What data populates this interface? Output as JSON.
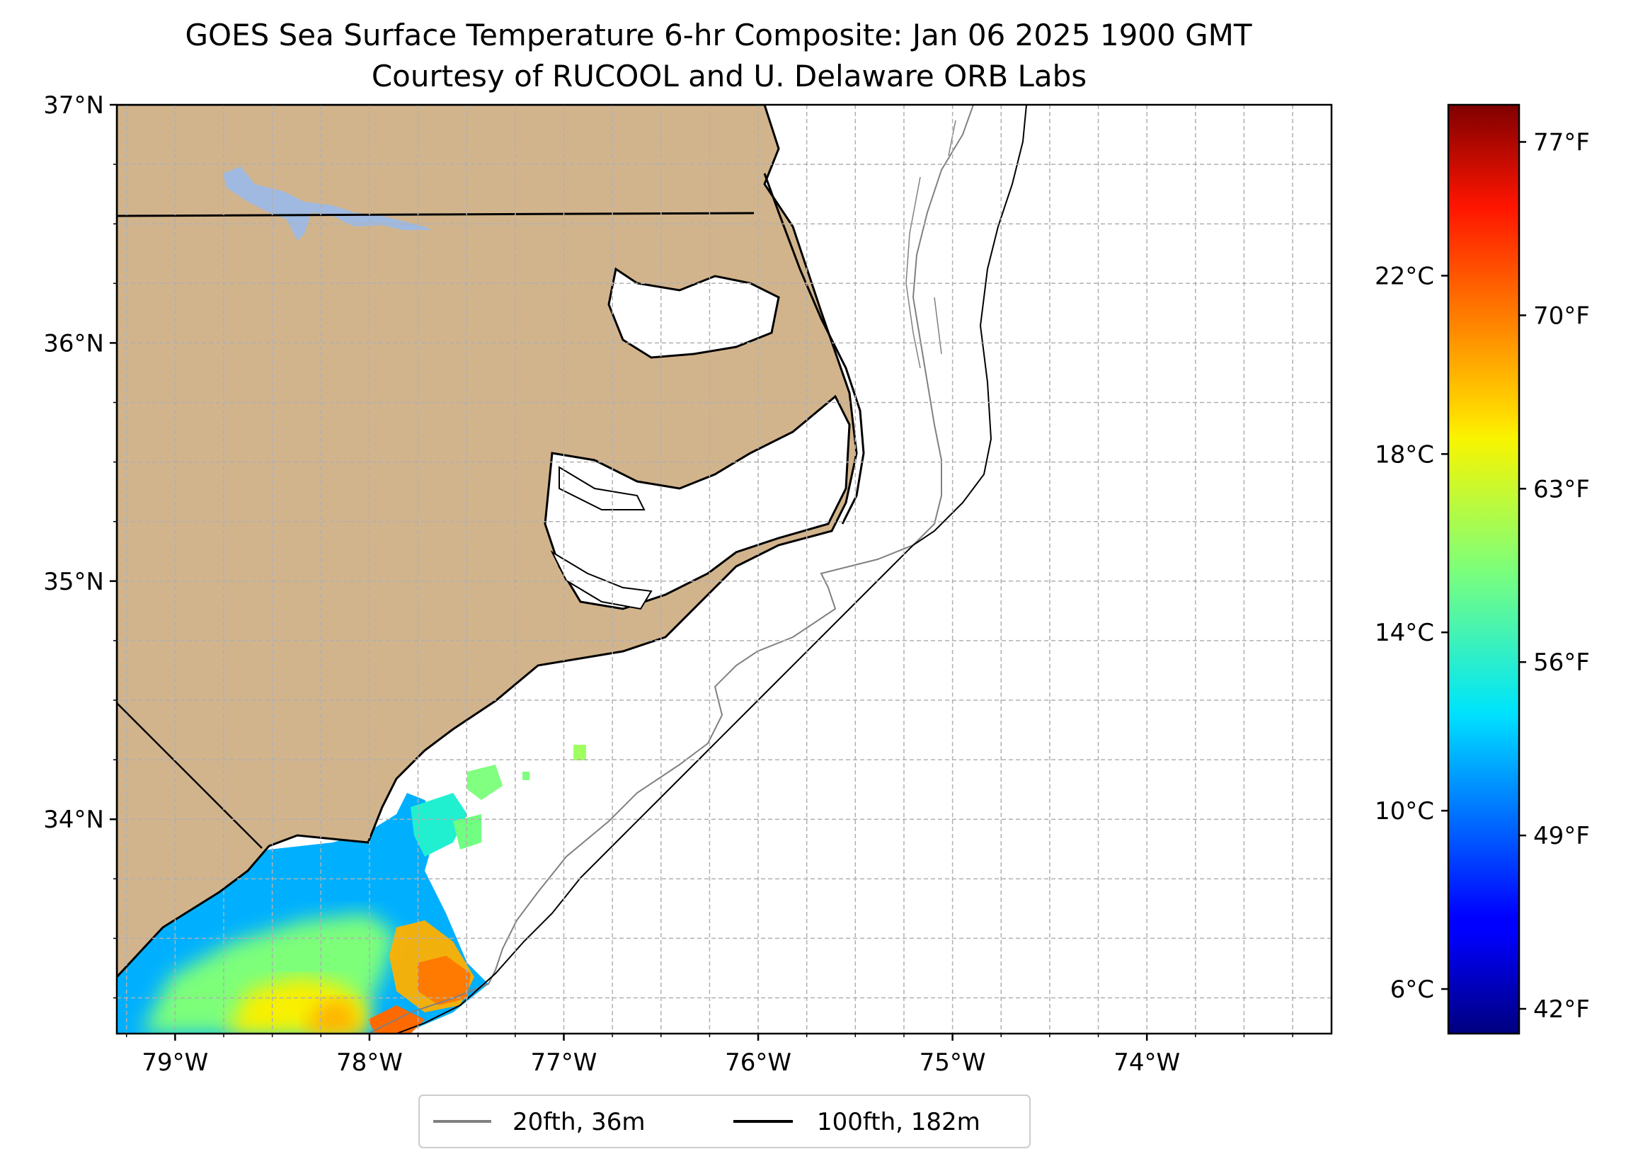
{
  "title": {
    "line1": "GOES Sea Surface Temperature 6-hr Composite: Jan 06 2025 1900 GMT",
    "line2": "Courtesy of RUCOOL and U. Delaware ORB Labs"
  },
  "map": {
    "extent": {
      "lon": [
        -79.3,
        -73.05
      ],
      "lat": [
        33.1,
        37.0
      ]
    },
    "lat_ticks": [
      {
        "value": 37,
        "label": "37°N"
      },
      {
        "value": 36,
        "label": "36°N"
      },
      {
        "value": 35,
        "label": "35°N"
      },
      {
        "value": 34,
        "label": "34°N"
      }
    ],
    "lon_ticks": [
      {
        "value": -79,
        "label": "79°W"
      },
      {
        "value": -78,
        "label": "78°W"
      },
      {
        "value": -77,
        "label": "77°W"
      },
      {
        "value": -76,
        "label": "76°W"
      },
      {
        "value": -75,
        "label": "75°W"
      },
      {
        "value": -74,
        "label": "74°W"
      }
    ],
    "gridlines": "dashed, every 0.25°",
    "land_color": "#d2b48c",
    "lake_color": "#9fb9e0",
    "coastline_color": "#000000"
  },
  "colorbar": {
    "colormap": "jet",
    "range_f": [
      41,
      78.5
    ],
    "celsius_ticks": [
      {
        "value": 22,
        "label": "22°C"
      },
      {
        "value": 18,
        "label": "18°C"
      },
      {
        "value": 14,
        "label": "14°C"
      },
      {
        "value": 10,
        "label": "10°C"
      },
      {
        "value": 6,
        "label": "6°C"
      }
    ],
    "fahrenheit_ticks": [
      {
        "value": 77,
        "label": "77°F"
      },
      {
        "value": 70,
        "label": "70°F"
      },
      {
        "value": 63,
        "label": "63°F"
      },
      {
        "value": 56,
        "label": "56°F"
      },
      {
        "value": 49,
        "label": "49°F"
      },
      {
        "value": 42,
        "label": "42°F"
      }
    ]
  },
  "legend": {
    "items": [
      {
        "label": "20fth, 36m",
        "color": "#808080"
      },
      {
        "label": "100fth, 182m",
        "color": "#000000"
      }
    ]
  }
}
